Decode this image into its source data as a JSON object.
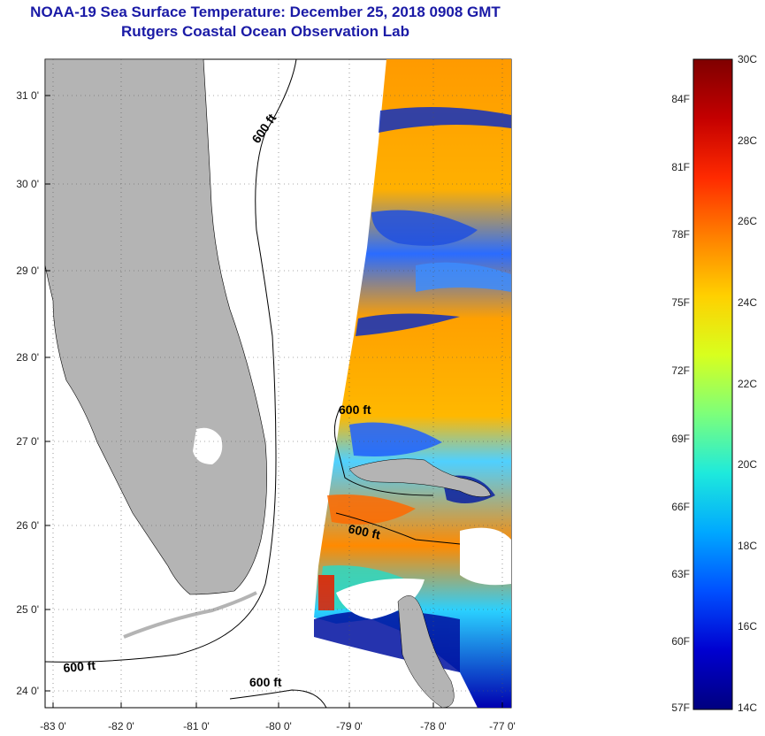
{
  "header": {
    "title": "NOAA-19 Sea Surface Temperature:  December 25, 2018 0908 GMT",
    "subtitle": "Rutgers Coastal Ocean Observation Lab"
  },
  "map": {
    "lat_range": [
      23.8,
      31.5
    ],
    "lon_range": [
      -83.0,
      -76.8
    ],
    "y_ticks": [
      "31 0'",
      "30 0'",
      "29 0'",
      "28 0'",
      "27 0'",
      "26 0'",
      "25 0'",
      "24 0'"
    ],
    "x_ticks": [
      "-83 0'",
      "-82 0'",
      "-81 0'",
      "-80 0'",
      "-79 0'",
      "-78 0'",
      "-77 0'"
    ],
    "contour_labels": [
      "600 ft",
      "600 ft",
      "600 ft",
      "600 ft",
      "600 ft"
    ],
    "land_color": "#b4b4b4"
  },
  "colorbar": {
    "celsius_labels": [
      "30C",
      "28C",
      "26C",
      "24C",
      "22C",
      "20C",
      "18C",
      "16C",
      "14C"
    ],
    "fahrenheit_labels": [
      "84F",
      "81F",
      "78F",
      "75F",
      "72F",
      "69F",
      "66F",
      "63F",
      "60F",
      "57F"
    ],
    "colors": [
      "#7f0000",
      "#c40000",
      "#ff2a00",
      "#ff8000",
      "#ffd000",
      "#d8ff1e",
      "#7dff7a",
      "#1eeadc",
      "#00a8ff",
      "#0050ff",
      "#0000d0",
      "#00007f"
    ]
  }
}
